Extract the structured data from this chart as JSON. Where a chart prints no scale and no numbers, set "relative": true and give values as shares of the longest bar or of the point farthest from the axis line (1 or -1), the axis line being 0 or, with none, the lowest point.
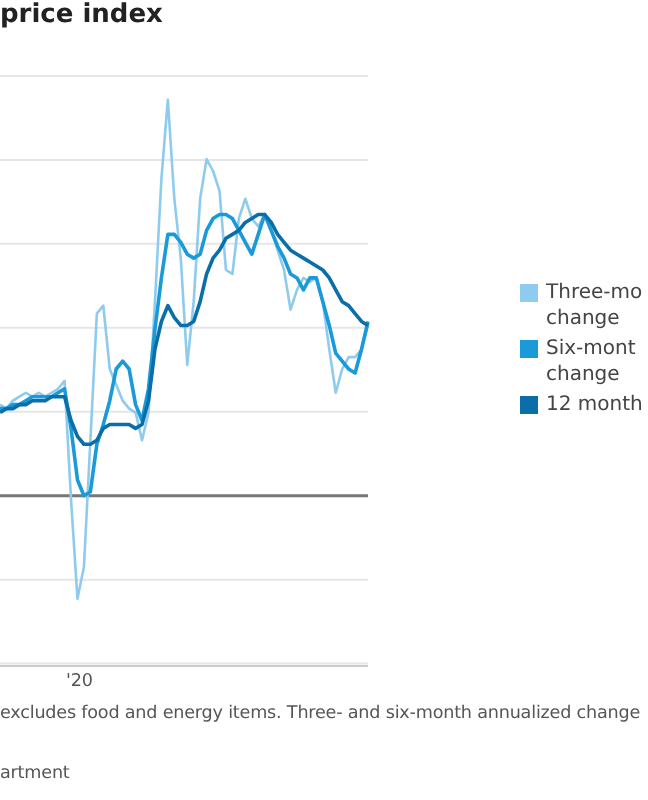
{
  "chart_data": {
    "type": "line",
    "title": "price index",
    "relative": true,
    "grid": "y",
    "legend": "right",
    "marker": "none",
    "line_style": "solid",
    "categories": [
      null,
      null,
      null,
      null,
      null,
      null,
      null,
      null,
      null,
      null,
      null,
      null,
      null,
      null,
      null,
      null,
      null,
      null,
      null,
      null,
      null,
      null,
      null,
      null,
      null,
      null,
      null,
      null,
      null,
      null,
      null,
      null,
      null,
      null,
      null,
      null,
      null,
      null,
      null,
      null,
      null,
      null,
      null,
      null,
      null,
      null,
      null,
      null,
      null,
      null,
      null,
      null,
      null,
      null,
      null,
      null,
      null,
      null
    ],
    "series": [
      {
        "name": "Three-mo change",
        "color": "#8fcbee",
        "values": [
          0.23,
          0.22,
          0.24,
          0.25,
          0.26,
          0.25,
          0.26,
          0.25,
          0.26,
          0.27,
          0.29,
          -0.01,
          -0.26,
          -0.18,
          0.14,
          0.46,
          0.48,
          0.32,
          0.28,
          0.24,
          0.22,
          0.21,
          0.14,
          0.21,
          0.49,
          0.8,
          1,
          0.75,
          0.6,
          0.33,
          0.49,
          0.75,
          0.85,
          0.82,
          0.77,
          0.57,
          0.56,
          0.7,
          0.75,
          0.7,
          0.68,
          0.71,
          0.67,
          0.62,
          0.57,
          0.47,
          0.52,
          0.55,
          0.54,
          0.55,
          0.49,
          0.37,
          0.26,
          0.32,
          0.35,
          0.35,
          0.37,
          0.43
        ]
      },
      {
        "name": "Six-mont change",
        "color": "#1a9ad9",
        "values": [
          0.22,
          0.22,
          0.23,
          0.23,
          0.24,
          0.25,
          0.25,
          0.25,
          0.25,
          0.26,
          0.27,
          0.17,
          0.04,
          0,
          0.01,
          0.13,
          0.18,
          0.24,
          0.32,
          0.34,
          0.32,
          0.23,
          0.19,
          0.27,
          0.42,
          0.55,
          0.66,
          0.66,
          0.64,
          0.61,
          0.6,
          0.61,
          0.67,
          0.7,
          0.71,
          0.71,
          0.7,
          0.67,
          0.64,
          0.61,
          0.66,
          0.71,
          0.67,
          0.63,
          0.6,
          0.56,
          0.55,
          0.52,
          0.55,
          0.55,
          0.49,
          0.43,
          0.36,
          0.34,
          0.32,
          0.31,
          0.37,
          0.44
        ]
      },
      {
        "name": "12 month",
        "color": "#0a6fa8",
        "values": [
          0.21,
          0.22,
          0.22,
          0.23,
          0.23,
          0.24,
          0.24,
          0.24,
          0.25,
          0.25,
          0.25,
          0.19,
          0.15,
          0.13,
          0.13,
          0.14,
          0.17,
          0.18,
          0.18,
          0.18,
          0.18,
          0.17,
          0.18,
          0.24,
          0.37,
          0.44,
          0.48,
          0.45,
          0.43,
          0.43,
          0.44,
          0.49,
          0.56,
          0.6,
          0.62,
          0.65,
          0.66,
          0.67,
          0.69,
          0.7,
          0.71,
          0.71,
          0.69,
          0.66,
          0.64,
          0.62,
          0.61,
          0.6,
          0.59,
          0.58,
          0.57,
          0.55,
          0.52,
          0.49,
          0.48,
          0.46,
          0.44,
          0.43
        ]
      }
    ],
    "annotations": [
      "'20",
      "excludes food and energy items. Three- and six-month annualized change",
      "artment"
    ]
  }
}
